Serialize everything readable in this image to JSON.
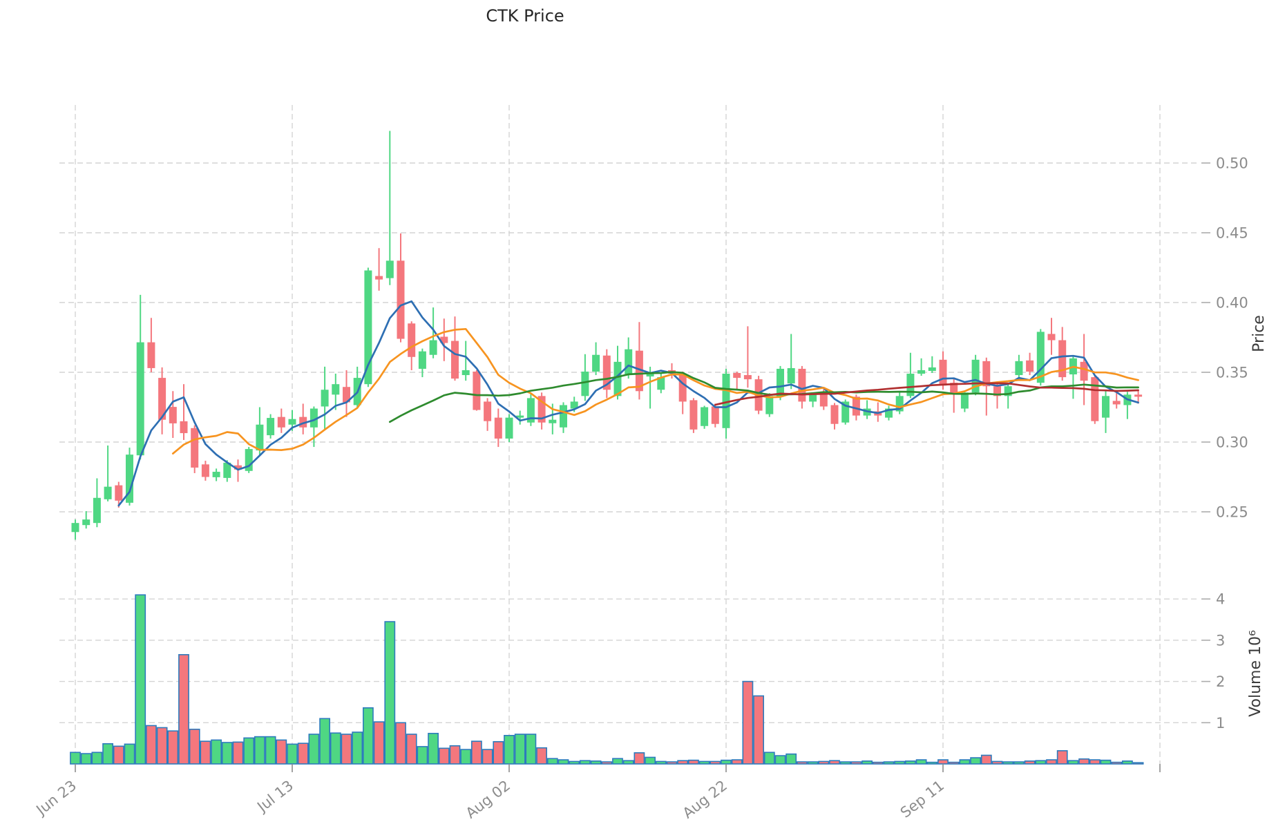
{
  "title": "CTK Price",
  "axes": {
    "price_label": "Price",
    "volume_label": "Volume  10⁶",
    "price_ticks": [
      "0.50",
      "0.45",
      "0.40",
      "0.35",
      "0.30",
      "0.25"
    ],
    "price_tick_values": [
      0.5,
      0.45,
      0.4,
      0.35,
      0.3,
      0.25
    ],
    "volume_ticks": [
      "4",
      "3",
      "2",
      "1"
    ],
    "volume_tick_values": [
      4,
      3,
      2,
      1
    ],
    "x_ticks": [
      {
        "label": "Jun 23",
        "index": 0
      },
      {
        "label": "Jul 13",
        "index": 20
      },
      {
        "label": "Aug 02",
        "index": 40
      },
      {
        "label": "Aug 22",
        "index": 60
      },
      {
        "label": "Sep 11",
        "index": 80
      },
      {
        "label": "",
        "index": 100
      }
    ]
  },
  "style": {
    "up_color": "#4fd783",
    "down_color": "#f4777d",
    "volume_edge_color": "#2d7bbd",
    "grid_color": "#d4d4d4",
    "tick_text_color": "#8c8c8c",
    "ma_colors": {
      "MA5": "#2e6fb3",
      "MA10": "#f79420",
      "MA30": "#2e8b2e",
      "MA60": "#b02f2f"
    }
  },
  "chart_data": {
    "type": "candlestick",
    "title": "CTK Price",
    "xlabel": "",
    "ylabel": "Price",
    "ylabel2": "Volume  10⁶",
    "grid": true,
    "legend_position": "none",
    "price_ylim": [
      0.228,
      0.545
    ],
    "volume_ylim": [
      0,
      4.4
    ],
    "x_tick_labels": [
      "Jun 23",
      "Jul 13",
      "Aug 02",
      "Aug 22",
      "Sep 11"
    ],
    "dates": [
      "Jun 23",
      "Jun 24",
      "Jun 25",
      "Jun 26",
      "Jun 27",
      "Jun 28",
      "Jun 29",
      "Jun 30",
      "Jul 01",
      "Jul 02",
      "Jul 03",
      "Jul 04",
      "Jul 05",
      "Jul 06",
      "Jul 07",
      "Jul 08",
      "Jul 09",
      "Jul 10",
      "Jul 11",
      "Jul 12",
      "Jul 13",
      "Jul 14",
      "Jul 15",
      "Jul 16",
      "Jul 17",
      "Jul 18",
      "Jul 19",
      "Jul 20",
      "Jul 21",
      "Jul 22",
      "Jul 23",
      "Jul 24",
      "Jul 25",
      "Jul 26",
      "Jul 27",
      "Jul 28",
      "Jul 29",
      "Jul 30",
      "Jul 31",
      "Aug 01",
      "Aug 02",
      "Aug 03",
      "Aug 04",
      "Aug 05",
      "Aug 06",
      "Aug 07",
      "Aug 08",
      "Aug 09",
      "Aug 10",
      "Aug 11",
      "Aug 12",
      "Aug 13",
      "Aug 14",
      "Aug 15",
      "Aug 16",
      "Aug 17",
      "Aug 18",
      "Aug 19",
      "Aug 20",
      "Aug 21",
      "Aug 22",
      "Aug 23",
      "Aug 24",
      "Aug 25",
      "Aug 26",
      "Aug 27",
      "Aug 28",
      "Aug 29",
      "Aug 30",
      "Aug 31",
      "Sep 01",
      "Sep 02",
      "Sep 03",
      "Sep 04",
      "Sep 05",
      "Sep 06",
      "Sep 07",
      "Sep 08",
      "Sep 09",
      "Sep 10",
      "Sep 11",
      "Sep 12",
      "Sep 13",
      "Sep 14",
      "Sep 15",
      "Sep 16",
      "Sep 17",
      "Sep 18",
      "Sep 19",
      "Sep 20",
      "Sep 21",
      "Sep 22",
      "Sep 23",
      "Sep 24",
      "Sep 25",
      "Sep 26",
      "Sep 27",
      "Sep 28",
      "Sep 29"
    ],
    "ohlcv": [
      [
        0.2355,
        0.2445,
        0.23,
        0.242,
        0.28
      ],
      [
        0.2405,
        0.2505,
        0.238,
        0.2445,
        0.25
      ],
      [
        0.242,
        0.274,
        0.239,
        0.26,
        0.28
      ],
      [
        0.259,
        0.2975,
        0.2575,
        0.268,
        0.49
      ],
      [
        0.269,
        0.2715,
        0.253,
        0.258,
        0.43
      ],
      [
        0.2565,
        0.296,
        0.2545,
        0.291,
        0.48
      ],
      [
        0.2905,
        0.4055,
        0.2875,
        0.3715,
        4.1
      ],
      [
        0.3715,
        0.389,
        0.35,
        0.353,
        0.93
      ],
      [
        0.346,
        0.3535,
        0.3055,
        0.316,
        0.88
      ],
      [
        0.3252,
        0.3365,
        0.303,
        0.3134,
        0.8
      ],
      [
        0.3149,
        0.3415,
        0.3015,
        0.3064,
        2.65
      ],
      [
        0.31,
        0.312,
        0.2777,
        0.2817,
        0.84
      ],
      [
        0.284,
        0.2866,
        0.2723,
        0.275,
        0.55
      ],
      [
        0.2748,
        0.281,
        0.272,
        0.2787,
        0.58
      ],
      [
        0.2743,
        0.287,
        0.2715,
        0.2852,
        0.52
      ],
      [
        0.2833,
        0.2875,
        0.2715,
        0.2803,
        0.53
      ],
      [
        0.2793,
        0.2965,
        0.2778,
        0.295,
        0.63
      ],
      [
        0.294,
        0.325,
        0.2905,
        0.3125,
        0.66
      ],
      [
        0.3049,
        0.32,
        0.3025,
        0.3173,
        0.66
      ],
      [
        0.318,
        0.324,
        0.3065,
        0.3105,
        0.58
      ],
      [
        0.3125,
        0.323,
        0.308,
        0.3165,
        0.48
      ],
      [
        0.318,
        0.3275,
        0.3055,
        0.3105,
        0.5
      ],
      [
        0.3105,
        0.3255,
        0.2965,
        0.324,
        0.72
      ],
      [
        0.3255,
        0.354,
        0.309,
        0.3375,
        1.1
      ],
      [
        0.334,
        0.349,
        0.323,
        0.3415,
        0.75
      ],
      [
        0.3395,
        0.3515,
        0.318,
        0.3285,
        0.72
      ],
      [
        0.3265,
        0.354,
        0.3245,
        0.346,
        0.77
      ],
      [
        0.3415,
        0.425,
        0.3395,
        0.423,
        1.36
      ],
      [
        0.419,
        0.439,
        0.4085,
        0.4165,
        1.02
      ],
      [
        0.4175,
        0.523,
        0.4125,
        0.43,
        3.45
      ],
      [
        0.43,
        0.4495,
        0.3715,
        0.374,
        1.0
      ],
      [
        0.385,
        0.3865,
        0.3515,
        0.361,
        0.72
      ],
      [
        0.3525,
        0.367,
        0.3465,
        0.365,
        0.42
      ],
      [
        0.3625,
        0.3965,
        0.36,
        0.373,
        0.74
      ],
      [
        0.3755,
        0.3885,
        0.358,
        0.371,
        0.38
      ],
      [
        0.3725,
        0.39,
        0.344,
        0.3455,
        0.44
      ],
      [
        0.348,
        0.3725,
        0.344,
        0.3515,
        0.35
      ],
      [
        0.3505,
        0.3515,
        0.3225,
        0.323,
        0.55
      ],
      [
        0.329,
        0.3315,
        0.308,
        0.315,
        0.35
      ],
      [
        0.3175,
        0.324,
        0.2965,
        0.3025,
        0.54
      ],
      [
        0.3025,
        0.32,
        0.3,
        0.3175,
        0.69
      ],
      [
        0.3175,
        0.3225,
        0.3125,
        0.319,
        0.72
      ],
      [
        0.314,
        0.3345,
        0.3115,
        0.3315,
        0.72
      ],
      [
        0.333,
        0.3355,
        0.309,
        0.314,
        0.39
      ],
      [
        0.3135,
        0.3275,
        0.3055,
        0.316,
        0.13
      ],
      [
        0.3105,
        0.3285,
        0.3065,
        0.3265,
        0.1
      ],
      [
        0.324,
        0.3325,
        0.3215,
        0.329,
        0.06
      ],
      [
        0.333,
        0.363,
        0.3295,
        0.3505,
        0.08
      ],
      [
        0.3505,
        0.3715,
        0.348,
        0.3625,
        0.07
      ],
      [
        0.362,
        0.3665,
        0.3315,
        0.3375,
        0.05
      ],
      [
        0.333,
        0.369,
        0.3305,
        0.3575,
        0.13
      ],
      [
        0.348,
        0.375,
        0.3455,
        0.3665,
        0.08
      ],
      [
        0.3655,
        0.386,
        0.3305,
        0.3365,
        0.27
      ],
      [
        0.347,
        0.354,
        0.324,
        0.349,
        0.16
      ],
      [
        0.3375,
        0.3495,
        0.335,
        0.3465,
        0.06
      ],
      [
        0.3515,
        0.3565,
        0.3455,
        0.349,
        0.05
      ],
      [
        0.348,
        0.3505,
        0.32,
        0.329,
        0.08
      ],
      [
        0.33,
        0.3315,
        0.3065,
        0.309,
        0.09
      ],
      [
        0.3115,
        0.326,
        0.3095,
        0.325,
        0.06
      ],
      [
        0.3255,
        0.3275,
        0.3105,
        0.313,
        0.06
      ],
      [
        0.31,
        0.3525,
        0.3025,
        0.349,
        0.09
      ],
      [
        0.3495,
        0.3505,
        0.3375,
        0.346,
        0.1
      ],
      [
        0.348,
        0.383,
        0.339,
        0.345,
        2.0
      ],
      [
        0.345,
        0.3475,
        0.32,
        0.3225,
        1.65
      ],
      [
        0.32,
        0.335,
        0.318,
        0.333,
        0.28
      ],
      [
        0.3325,
        0.3545,
        0.33,
        0.3525,
        0.2
      ],
      [
        0.342,
        0.3775,
        0.338,
        0.353,
        0.24
      ],
      [
        0.3525,
        0.3545,
        0.324,
        0.329,
        0.05
      ],
      [
        0.329,
        0.3355,
        0.325,
        0.334,
        0.05
      ],
      [
        0.3355,
        0.338,
        0.323,
        0.3255,
        0.06
      ],
      [
        0.3265,
        0.328,
        0.309,
        0.313,
        0.08
      ],
      [
        0.314,
        0.3305,
        0.3125,
        0.329,
        0.05
      ],
      [
        0.3325,
        0.334,
        0.3155,
        0.319,
        0.05
      ],
      [
        0.319,
        0.33,
        0.3165,
        0.324,
        0.07
      ],
      [
        0.322,
        0.3285,
        0.3145,
        0.319,
        0.04
      ],
      [
        0.3175,
        0.326,
        0.3155,
        0.324,
        0.05
      ],
      [
        0.322,
        0.3355,
        0.32,
        0.333,
        0.06
      ],
      [
        0.333,
        0.364,
        0.3315,
        0.349,
        0.07
      ],
      [
        0.349,
        0.36,
        0.3475,
        0.3515,
        0.1
      ],
      [
        0.351,
        0.3615,
        0.3495,
        0.3535,
        0.04
      ],
      [
        0.359,
        0.365,
        0.3375,
        0.3405,
        0.1
      ],
      [
        0.3425,
        0.346,
        0.321,
        0.334,
        0.04
      ],
      [
        0.324,
        0.337,
        0.3215,
        0.3355,
        0.1
      ],
      [
        0.3355,
        0.3625,
        0.3335,
        0.359,
        0.15
      ],
      [
        0.358,
        0.3605,
        0.319,
        0.34,
        0.21
      ],
      [
        0.34,
        0.3425,
        0.324,
        0.333,
        0.06
      ],
      [
        0.333,
        0.341,
        0.324,
        0.34,
        0.05
      ],
      [
        0.348,
        0.3625,
        0.344,
        0.358,
        0.05
      ],
      [
        0.3585,
        0.364,
        0.348,
        0.3505,
        0.07
      ],
      [
        0.3425,
        0.381,
        0.3405,
        0.379,
        0.08
      ],
      [
        0.3775,
        0.389,
        0.3625,
        0.373,
        0.1
      ],
      [
        0.373,
        0.3825,
        0.344,
        0.3465,
        0.32
      ],
      [
        0.3485,
        0.3615,
        0.331,
        0.36,
        0.08
      ],
      [
        0.3575,
        0.3775,
        0.3265,
        0.344,
        0.12
      ],
      [
        0.3465,
        0.348,
        0.313,
        0.315,
        0.1
      ],
      [
        0.3175,
        0.3375,
        0.3065,
        0.333,
        0.09
      ],
      [
        0.3295,
        0.3355,
        0.324,
        0.327,
        0.04
      ],
      [
        0.3265,
        0.336,
        0.3165,
        0.334,
        0.07
      ],
      [
        0.334,
        0.3375,
        0.3275,
        0.3325,
        0.03
      ]
    ],
    "moving_averages": [
      {
        "name": "MA5",
        "window": 5,
        "color": "#2e6fb3"
      },
      {
        "name": "MA10",
        "window": 10,
        "color": "#f79420"
      },
      {
        "name": "MA30",
        "window": 30,
        "color": "#2e8b2e"
      },
      {
        "name": "MA60",
        "window": 60,
        "color": "#b02f2f"
      }
    ]
  }
}
